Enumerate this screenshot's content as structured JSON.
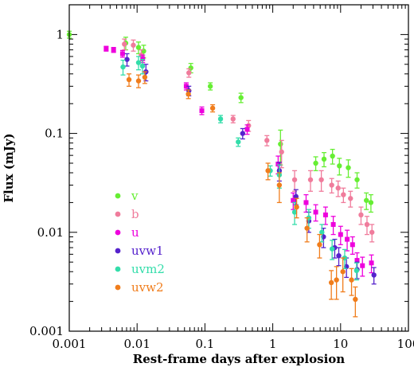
{
  "chart_data": {
    "type": "scatter",
    "xscale": "log",
    "yscale": "log",
    "xlim": [
      0.001,
      100
    ],
    "ylim": [
      0.001,
      2
    ],
    "xlabel": "Rest-frame days after explosion",
    "ylabel": "Flux (mJy)",
    "x_ticks": [
      {
        "v": 0.001,
        "label": "0.001"
      },
      {
        "v": 0.01,
        "label": "0.01"
      },
      {
        "v": 0.1,
        "label": "0.1"
      },
      {
        "v": 1,
        "label": "1"
      },
      {
        "v": 10,
        "label": "10"
      },
      {
        "v": 100,
        "label": "100"
      }
    ],
    "y_ticks": [
      {
        "v": 0.001,
        "label": "0.001"
      },
      {
        "v": 0.01,
        "label": "0.01"
      },
      {
        "v": 0.1,
        "label": "0.1"
      },
      {
        "v": 1,
        "label": "1"
      }
    ],
    "legend_position": "bottom-left",
    "series": [
      {
        "name": "v",
        "color": "#66ee33",
        "marker": "circle",
        "points": [
          [
            0.001,
            1.0,
            0.08
          ],
          [
            0.0068,
            0.82,
            0.12
          ],
          [
            0.0105,
            0.74,
            0.1
          ],
          [
            0.0125,
            0.68,
            0.1
          ],
          [
            0.062,
            0.46,
            0.05
          ],
          [
            0.12,
            0.3,
            0.025
          ],
          [
            0.34,
            0.23,
            0.025
          ],
          [
            1.3,
            0.078,
            0.03
          ],
          [
            4.3,
            0.05,
            0.008
          ],
          [
            5.7,
            0.055,
            0.009
          ],
          [
            7.6,
            0.059,
            0.01
          ],
          [
            9.6,
            0.047,
            0.009
          ],
          [
            13,
            0.045,
            0.009
          ],
          [
            17.5,
            0.034,
            0.006
          ],
          [
            24,
            0.021,
            0.004
          ],
          [
            28,
            0.02,
            0.004
          ]
        ]
      },
      {
        "name": "b",
        "color": "#f07c9c",
        "marker": "circle",
        "points": [
          [
            0.0065,
            0.8,
            0.1
          ],
          [
            0.0088,
            0.78,
            0.1
          ],
          [
            0.0115,
            0.62,
            0.08
          ],
          [
            0.058,
            0.41,
            0.04
          ],
          [
            0.26,
            0.14,
            0.012
          ],
          [
            0.44,
            0.12,
            0.015
          ],
          [
            0.82,
            0.085,
            0.01
          ],
          [
            1.35,
            0.065,
            0.02
          ],
          [
            2.1,
            0.034,
            0.008
          ],
          [
            3.6,
            0.034,
            0.008
          ],
          [
            5.2,
            0.034,
            0.008
          ],
          [
            7.4,
            0.03,
            0.005
          ],
          [
            9.2,
            0.028,
            0.005
          ],
          [
            11,
            0.024,
            0.004
          ],
          [
            14,
            0.022,
            0.004
          ],
          [
            20,
            0.015,
            0.003
          ],
          [
            24.5,
            0.012,
            0.0025
          ],
          [
            29,
            0.01,
            0.002
          ]
        ]
      },
      {
        "name": "u",
        "color": "#ee00dd",
        "marker": "square",
        "points": [
          [
            0.0035,
            0.72,
            0.04
          ],
          [
            0.0045,
            0.7,
            0.04
          ],
          [
            0.0061,
            0.64,
            0.05
          ],
          [
            0.0121,
            0.57,
            0.05
          ],
          [
            0.053,
            0.3,
            0.025
          ],
          [
            0.09,
            0.17,
            0.015
          ],
          [
            0.42,
            0.11,
            0.012
          ],
          [
            1.2,
            0.049,
            0.01
          ],
          [
            2.0,
            0.021,
            0.004
          ],
          [
            3.1,
            0.02,
            0.004
          ],
          [
            4.3,
            0.016,
            0.003
          ],
          [
            6.0,
            0.015,
            0.003
          ],
          [
            7.8,
            0.012,
            0.0025
          ],
          [
            10,
            0.0095,
            0.002
          ],
          [
            12.5,
            0.0085,
            0.002
          ],
          [
            15,
            0.0075,
            0.0015
          ],
          [
            17.5,
            0.0052,
            0.001
          ],
          [
            21,
            0.0046,
            0.001
          ],
          [
            28.5,
            0.0049,
            0.001
          ]
        ]
      },
      {
        "name": "uvw1",
        "color": "#5522cc",
        "marker": "circle",
        "points": [
          [
            0.0071,
            0.56,
            0.08
          ],
          [
            0.0135,
            0.42,
            0.08
          ],
          [
            0.058,
            0.27,
            0.03
          ],
          [
            0.36,
            0.1,
            0.012
          ],
          [
            1.25,
            0.042,
            0.009
          ],
          [
            2.2,
            0.023,
            0.004
          ],
          [
            3.4,
            0.013,
            0.003
          ],
          [
            5.6,
            0.009,
            0.002
          ],
          [
            8.2,
            0.007,
            0.0015
          ],
          [
            9.4,
            0.0058,
            0.0012
          ],
          [
            12.2,
            0.0045,
            0.001
          ],
          [
            17.5,
            0.0042,
            0.0008
          ],
          [
            31,
            0.0037,
            0.0007
          ]
        ]
      },
      {
        "name": "uvm2",
        "color": "#33ddaa",
        "marker": "circle",
        "points": [
          [
            0.0062,
            0.47,
            0.08
          ],
          [
            0.0105,
            0.52,
            0.08
          ],
          [
            0.012,
            0.48,
            0.08
          ],
          [
            0.17,
            0.14,
            0.012
          ],
          [
            0.31,
            0.082,
            0.008
          ],
          [
            0.92,
            0.042,
            0.005
          ],
          [
            1.25,
            0.038,
            0.01
          ],
          [
            2.1,
            0.016,
            0.004
          ],
          [
            3.4,
            0.014,
            0.003
          ],
          [
            5.3,
            0.01,
            0.002
          ],
          [
            7.5,
            0.0068,
            0.0015
          ],
          [
            11.5,
            0.0055,
            0.0012
          ],
          [
            17.2,
            0.0041,
            0.0008
          ]
        ]
      },
      {
        "name": "uvw2",
        "color": "#f07d1c",
        "marker": "circle",
        "points": [
          [
            0.0076,
            0.35,
            0.05
          ],
          [
            0.0105,
            0.34,
            0.05
          ],
          [
            0.013,
            0.37,
            0.05
          ],
          [
            0.057,
            0.25,
            0.025
          ],
          [
            0.13,
            0.18,
            0.015
          ],
          [
            0.85,
            0.042,
            0.008
          ],
          [
            1.25,
            0.03,
            0.01
          ],
          [
            2.25,
            0.018,
            0.004
          ],
          [
            3.2,
            0.011,
            0.003
          ],
          [
            4.9,
            0.0075,
            0.002
          ],
          [
            7.3,
            0.0031,
            0.001
          ],
          [
            8.7,
            0.0033,
            0.0012
          ],
          [
            10.8,
            0.004,
            0.0015
          ],
          [
            14.5,
            0.0033,
            0.001
          ],
          [
            16.5,
            0.0021,
            0.0007
          ]
        ]
      }
    ]
  }
}
